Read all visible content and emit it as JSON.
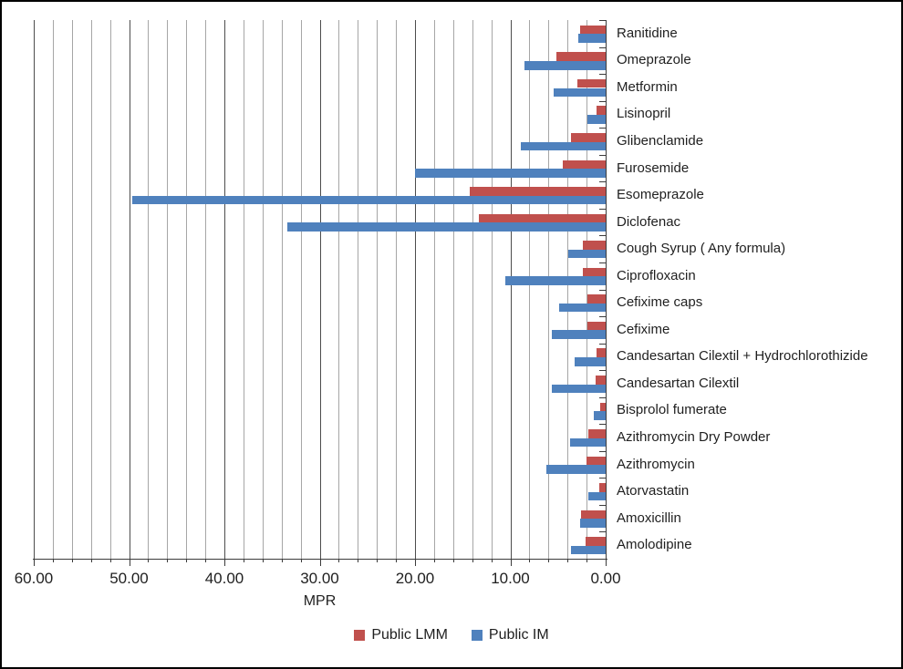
{
  "chart_data": {
    "type": "bar",
    "orientation": "horizontal",
    "title": "",
    "xlabel": "MPR",
    "ylabel": "",
    "x_axis": {
      "min": 0,
      "max": 60,
      "reversed": true,
      "major_step": 10,
      "minor_step": 2,
      "tick_labels": [
        "60.00",
        "50.00",
        "40.00",
        "30.00",
        "20.00",
        "10.00",
        "0.00"
      ]
    },
    "categories": [
      "Ranitidine",
      "Omeprazole",
      "Metformin",
      "Lisinopril",
      "Glibenclamide",
      "Furosemide",
      "Esomeprazole",
      "Diclofenac",
      "Cough Syrup ( Any formula)",
      "Ciprofloxacin",
      "Cefixime caps",
      "Cefixime",
      "Candesartan Cilextil + Hydrochlorothizide",
      "Candesartan Cilextil",
      "Bisprolol fumerate",
      "Azithromycin Dry Powder",
      "Azithromycin",
      "Atorvastatin",
      "Amoxicillin",
      "Amolodipine"
    ],
    "series": [
      {
        "name": "Public LMM",
        "color": "#C0504D",
        "values": [
          2.7,
          5.2,
          3.0,
          1.0,
          3.6,
          4.5,
          14.3,
          13.3,
          2.4,
          2.4,
          1.9,
          1.9,
          1.0,
          1.1,
          0.6,
          1.8,
          2.0,
          0.7,
          2.6,
          2.1
        ]
      },
      {
        "name": "Public IM",
        "color": "#4F81BD",
        "values": [
          2.9,
          8.5,
          5.5,
          1.9,
          8.9,
          20.0,
          49.7,
          33.4,
          3.9,
          10.5,
          4.9,
          5.6,
          3.3,
          5.6,
          1.2,
          3.7,
          6.2,
          1.8,
          2.7,
          3.6
        ]
      }
    ],
    "legend_position": "bottom",
    "grid": "vertical minor every 2, major every 10"
  },
  "colors": {
    "grid_minor": "#A6A6A6",
    "grid_major": "#4d4d4d",
    "axis": "#3b3b3b",
    "text": "#1f1f1f",
    "background": "#FFFFFF",
    "border": "#000000"
  }
}
